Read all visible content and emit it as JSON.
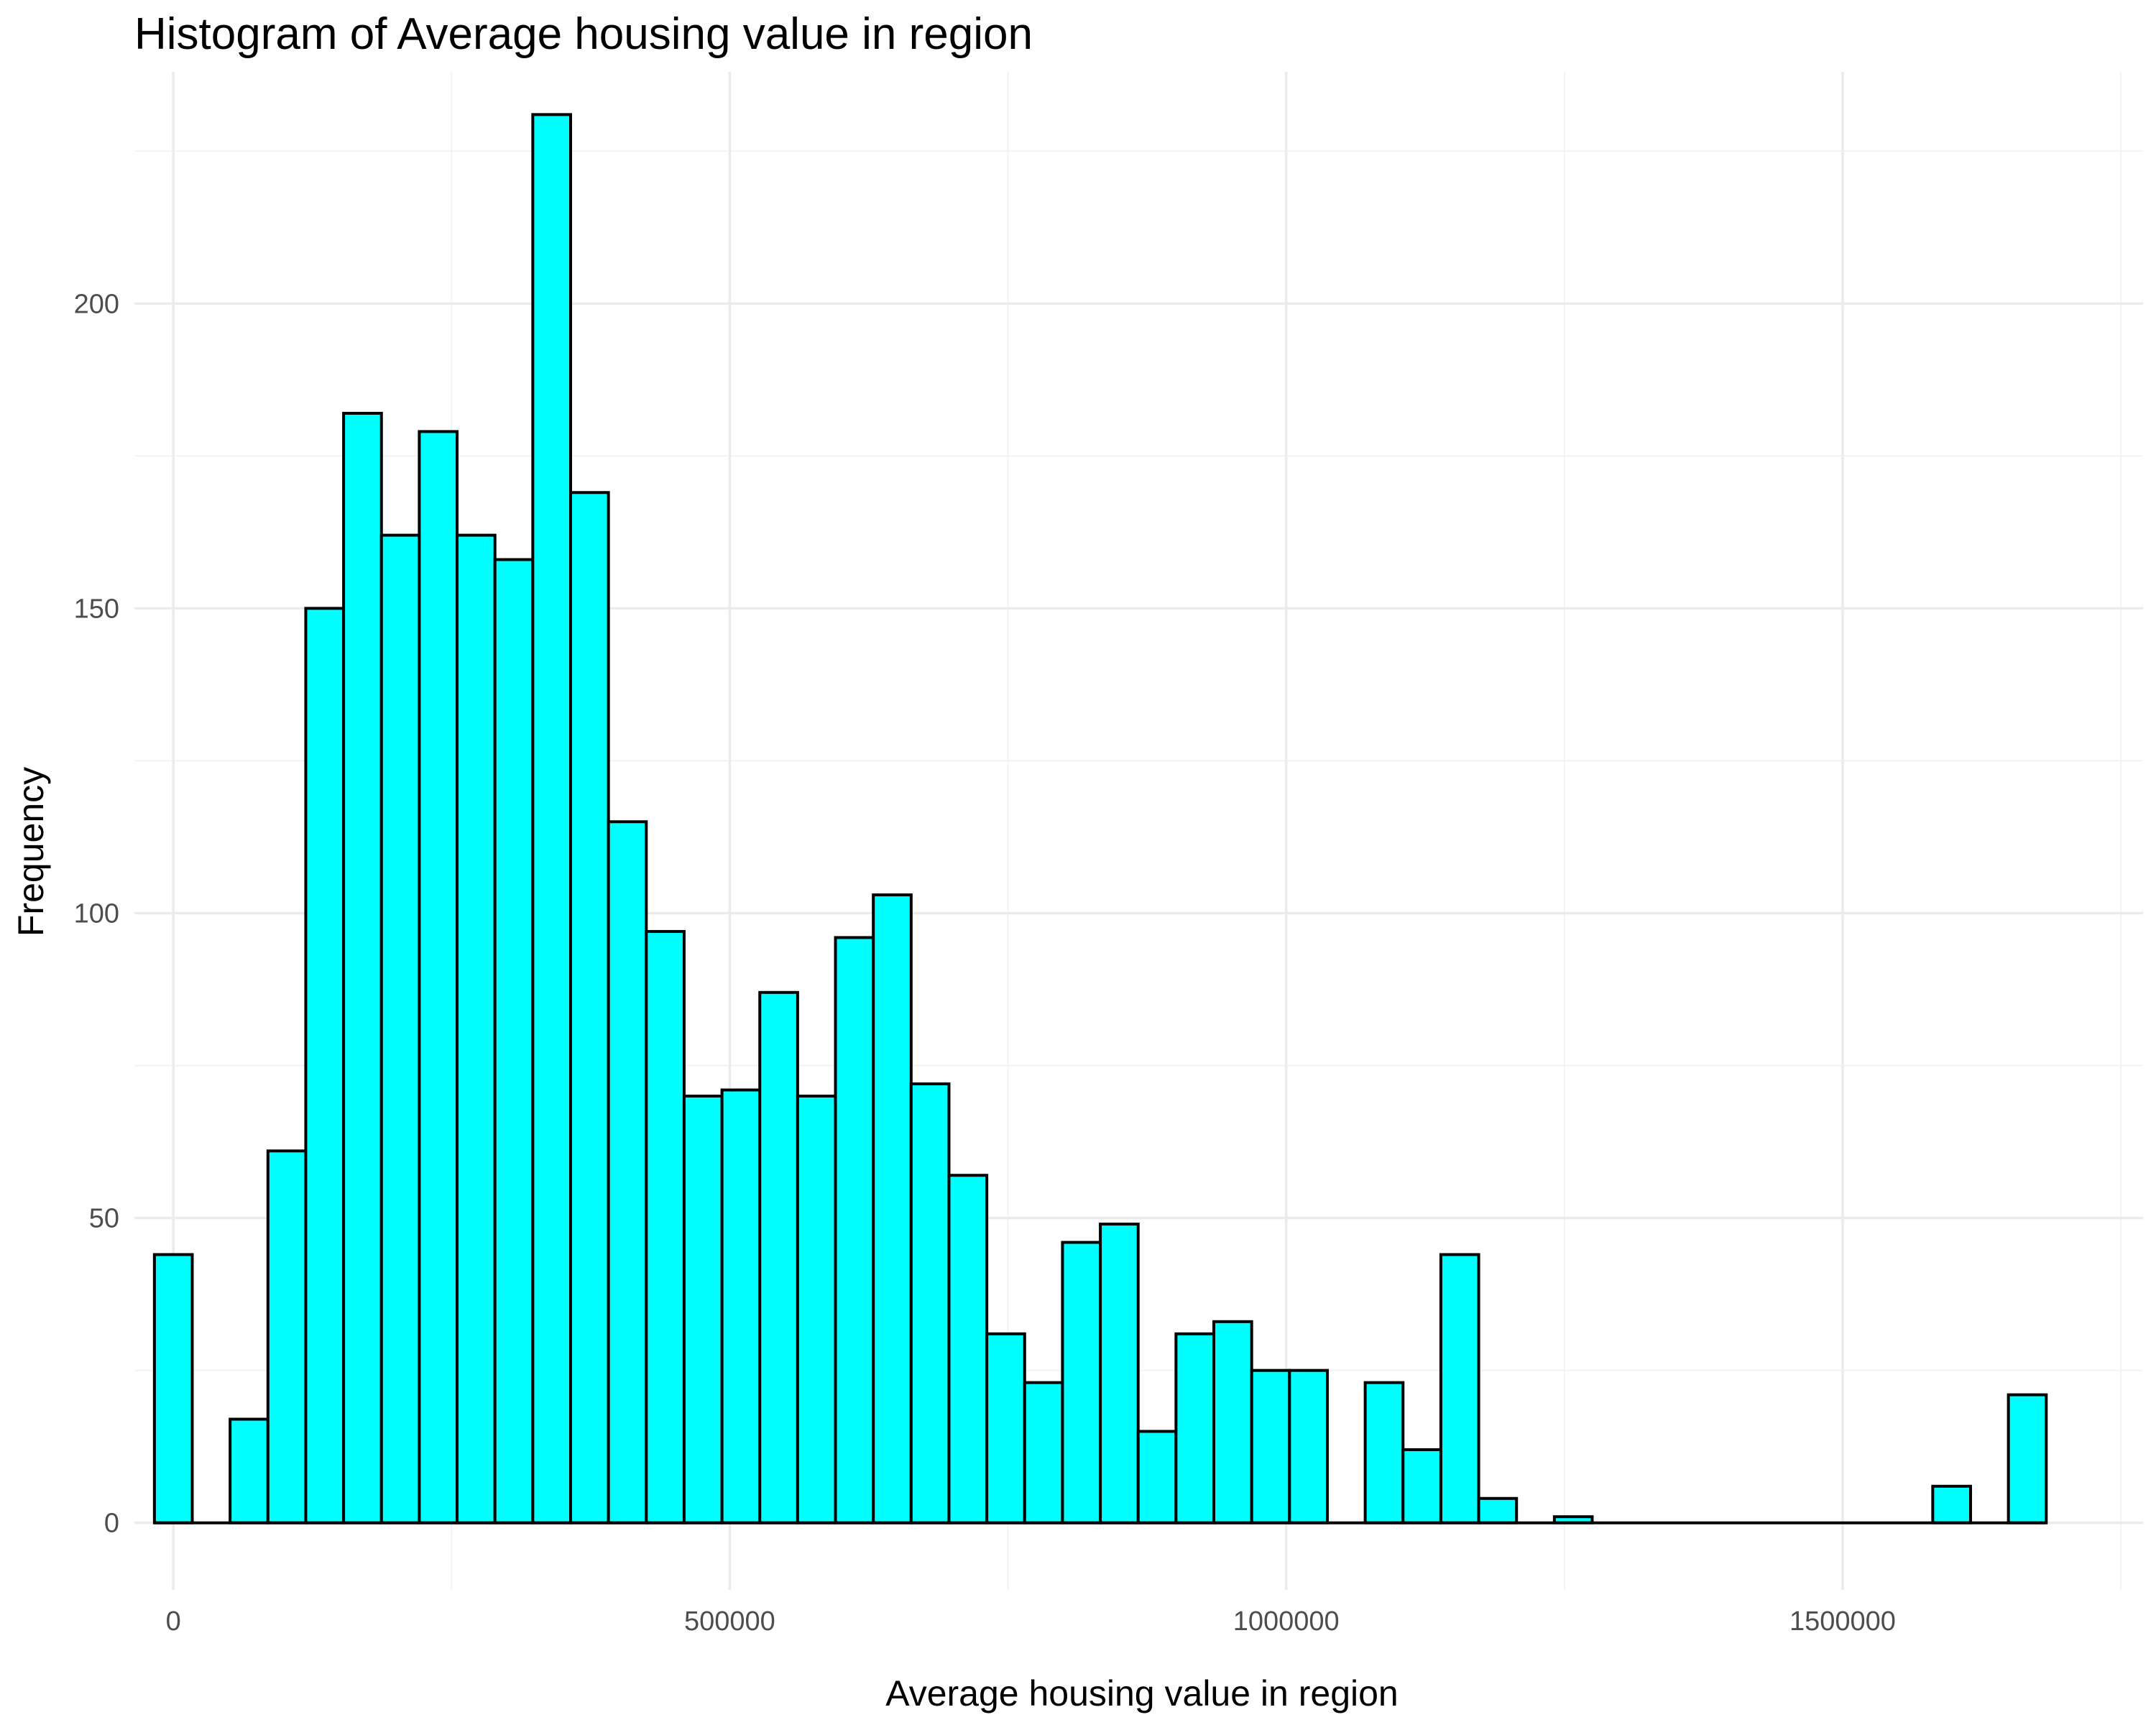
{
  "chart_data": {
    "type": "bar",
    "title": "Histogram of Average housing value in region",
    "xlabel": "Average housing value in region",
    "ylabel": "Frequency",
    "xlim": [
      -35000,
      1770000
    ],
    "ylim": [
      -11,
      238
    ],
    "bin_width": 34000,
    "bin_start": -17000,
    "x_ticks": [
      0,
      500000,
      1000000,
      1500000
    ],
    "x_tick_labels": [
      "0",
      "500000",
      "1000000",
      "1500000"
    ],
    "y_ticks": [
      0,
      50,
      100,
      150,
      200
    ],
    "y_tick_labels": [
      "0",
      "50",
      "100",
      "150",
      "200"
    ],
    "values": [
      44,
      0,
      17,
      61,
      150,
      182,
      162,
      179,
      162,
      158,
      231,
      169,
      115,
      97,
      70,
      71,
      87,
      70,
      96,
      103,
      72,
      57,
      31,
      23,
      46,
      49,
      15,
      31,
      33,
      25,
      25,
      0,
      23,
      12,
      44,
      4,
      0,
      1,
      0,
      0,
      0,
      0,
      0,
      0,
      0,
      0,
      0,
      6,
      0,
      21
    ],
    "grid": true,
    "fill_color": "#00ffff",
    "edge_color": "#000000"
  }
}
